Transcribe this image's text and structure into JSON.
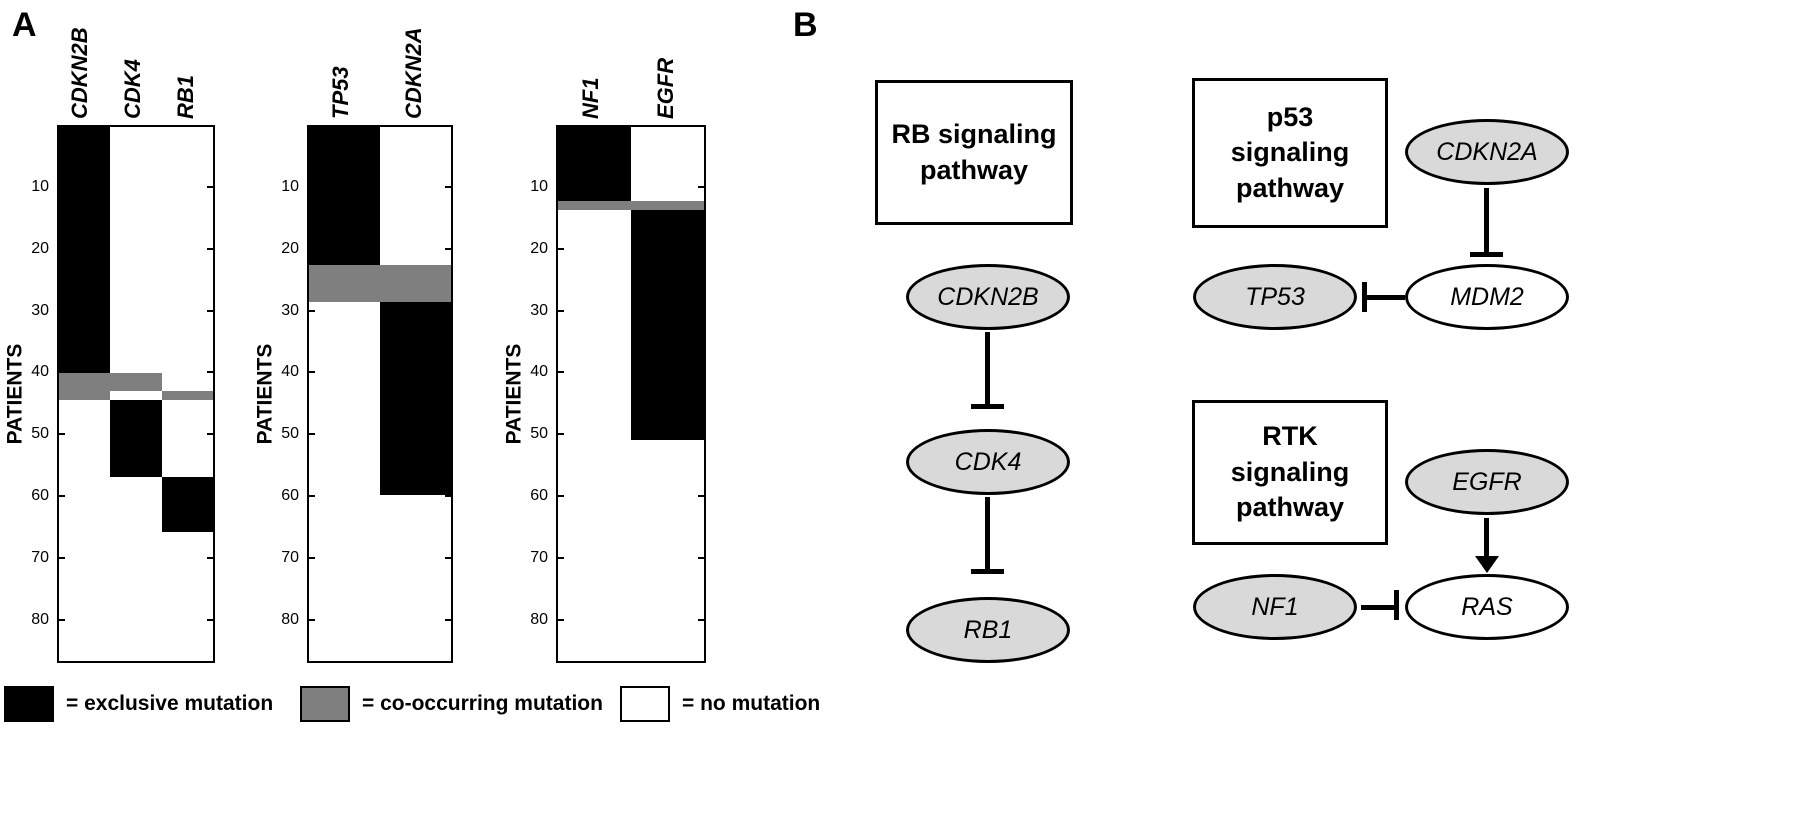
{
  "figure": {
    "panel_a_label": "A",
    "panel_b_label": "B"
  },
  "panel_a": {
    "y_axis_label": "PATIENTS",
    "colors": {
      "exclusive": "#000000",
      "co-occurring": "#7f7f7f",
      "none": "#ffffff"
    },
    "legend": [
      {
        "type": "exclusive",
        "label": "= exclusive mutation"
      },
      {
        "type": "co-occurring",
        "label": "= co-occurring mutation"
      },
      {
        "type": "none",
        "label": "= no mutation"
      }
    ]
  },
  "chart_data": [
    {
      "type": "heatmap",
      "columns": [
        "CDKN2B",
        "CDK4",
        "RB1"
      ],
      "ylabel": "PATIENTS",
      "y_ticks": [
        10,
        20,
        30,
        40,
        50,
        60,
        70,
        80
      ],
      "y_range": [
        0,
        87
      ],
      "segments": [
        {
          "column": "CDKN2B",
          "from": 0,
          "to": 40,
          "value": "exclusive"
        },
        {
          "column": "CDKN2B",
          "from": 40,
          "to": 44.5,
          "value": "co-occurring"
        },
        {
          "column": "CDK4",
          "from": 40,
          "to": 43,
          "value": "co-occurring"
        },
        {
          "column": "RB1",
          "from": 43,
          "to": 44.5,
          "value": "co-occurring"
        },
        {
          "column": "CDK4",
          "from": 44.5,
          "to": 57,
          "value": "exclusive"
        },
        {
          "column": "RB1",
          "from": 57,
          "to": 66,
          "value": "exclusive"
        }
      ]
    },
    {
      "type": "heatmap",
      "columns": [
        "TP53",
        "CDKN2A"
      ],
      "ylabel": "PATIENTS",
      "y_ticks": [
        10,
        20,
        30,
        40,
        50,
        60,
        70,
        80
      ],
      "y_range": [
        0,
        87
      ],
      "segments": [
        {
          "column": "TP53",
          "from": 0,
          "to": 22.5,
          "value": "exclusive"
        },
        {
          "column": "TP53",
          "from": 22.5,
          "to": 28.5,
          "value": "co-occurring"
        },
        {
          "column": "CDKN2A",
          "from": 22.5,
          "to": 28.5,
          "value": "co-occurring"
        },
        {
          "column": "CDKN2A",
          "from": 28.5,
          "to": 60,
          "value": "exclusive"
        }
      ]
    },
    {
      "type": "heatmap",
      "columns": [
        "NF1",
        "EGFR"
      ],
      "ylabel": "PATIENTS",
      "y_ticks": [
        10,
        20,
        30,
        40,
        50,
        60,
        70,
        80
      ],
      "y_range": [
        0,
        87
      ],
      "segments": [
        {
          "column": "NF1",
          "from": 0,
          "to": 12,
          "value": "exclusive"
        },
        {
          "column": "NF1",
          "from": 12,
          "to": 13.5,
          "value": "co-occurring"
        },
        {
          "column": "EGFR",
          "from": 12,
          "to": 13.5,
          "value": "co-occurring"
        },
        {
          "column": "EGFR",
          "from": 13.5,
          "to": 51,
          "value": "exclusive"
        }
      ]
    }
  ],
  "panel_b": {
    "boxes": {
      "rb": [
        "RB signaling",
        "pathway"
      ],
      "p53": [
        "p53",
        "signaling",
        "pathway"
      ],
      "rtk": [
        "RTK",
        "signaling",
        "pathway"
      ]
    },
    "nodes": {
      "cdkn2b": "CDKN2B",
      "cdk4": "CDK4",
      "rb1": "RB1",
      "cdkn2a": "CDKN2A",
      "mdm2": "MDM2",
      "tp53": "TP53",
      "egfr": "EGFR",
      "nf1": "NF1",
      "ras": "RAS"
    },
    "node_fill_gray": "#d9d9d9",
    "node_fill_white": "#ffffff",
    "edges": [
      {
        "from": "CDKN2B",
        "to": "CDK4",
        "type": "inhibition"
      },
      {
        "from": "CDK4",
        "to": "RB1",
        "type": "inhibition"
      },
      {
        "from": "CDKN2A",
        "to": "MDM2",
        "type": "inhibition"
      },
      {
        "from": "MDM2",
        "to": "TP53",
        "type": "inhibition"
      },
      {
        "from": "EGFR",
        "to": "RAS",
        "type": "activation"
      },
      {
        "from": "NF1",
        "to": "RAS",
        "type": "inhibition"
      }
    ]
  }
}
